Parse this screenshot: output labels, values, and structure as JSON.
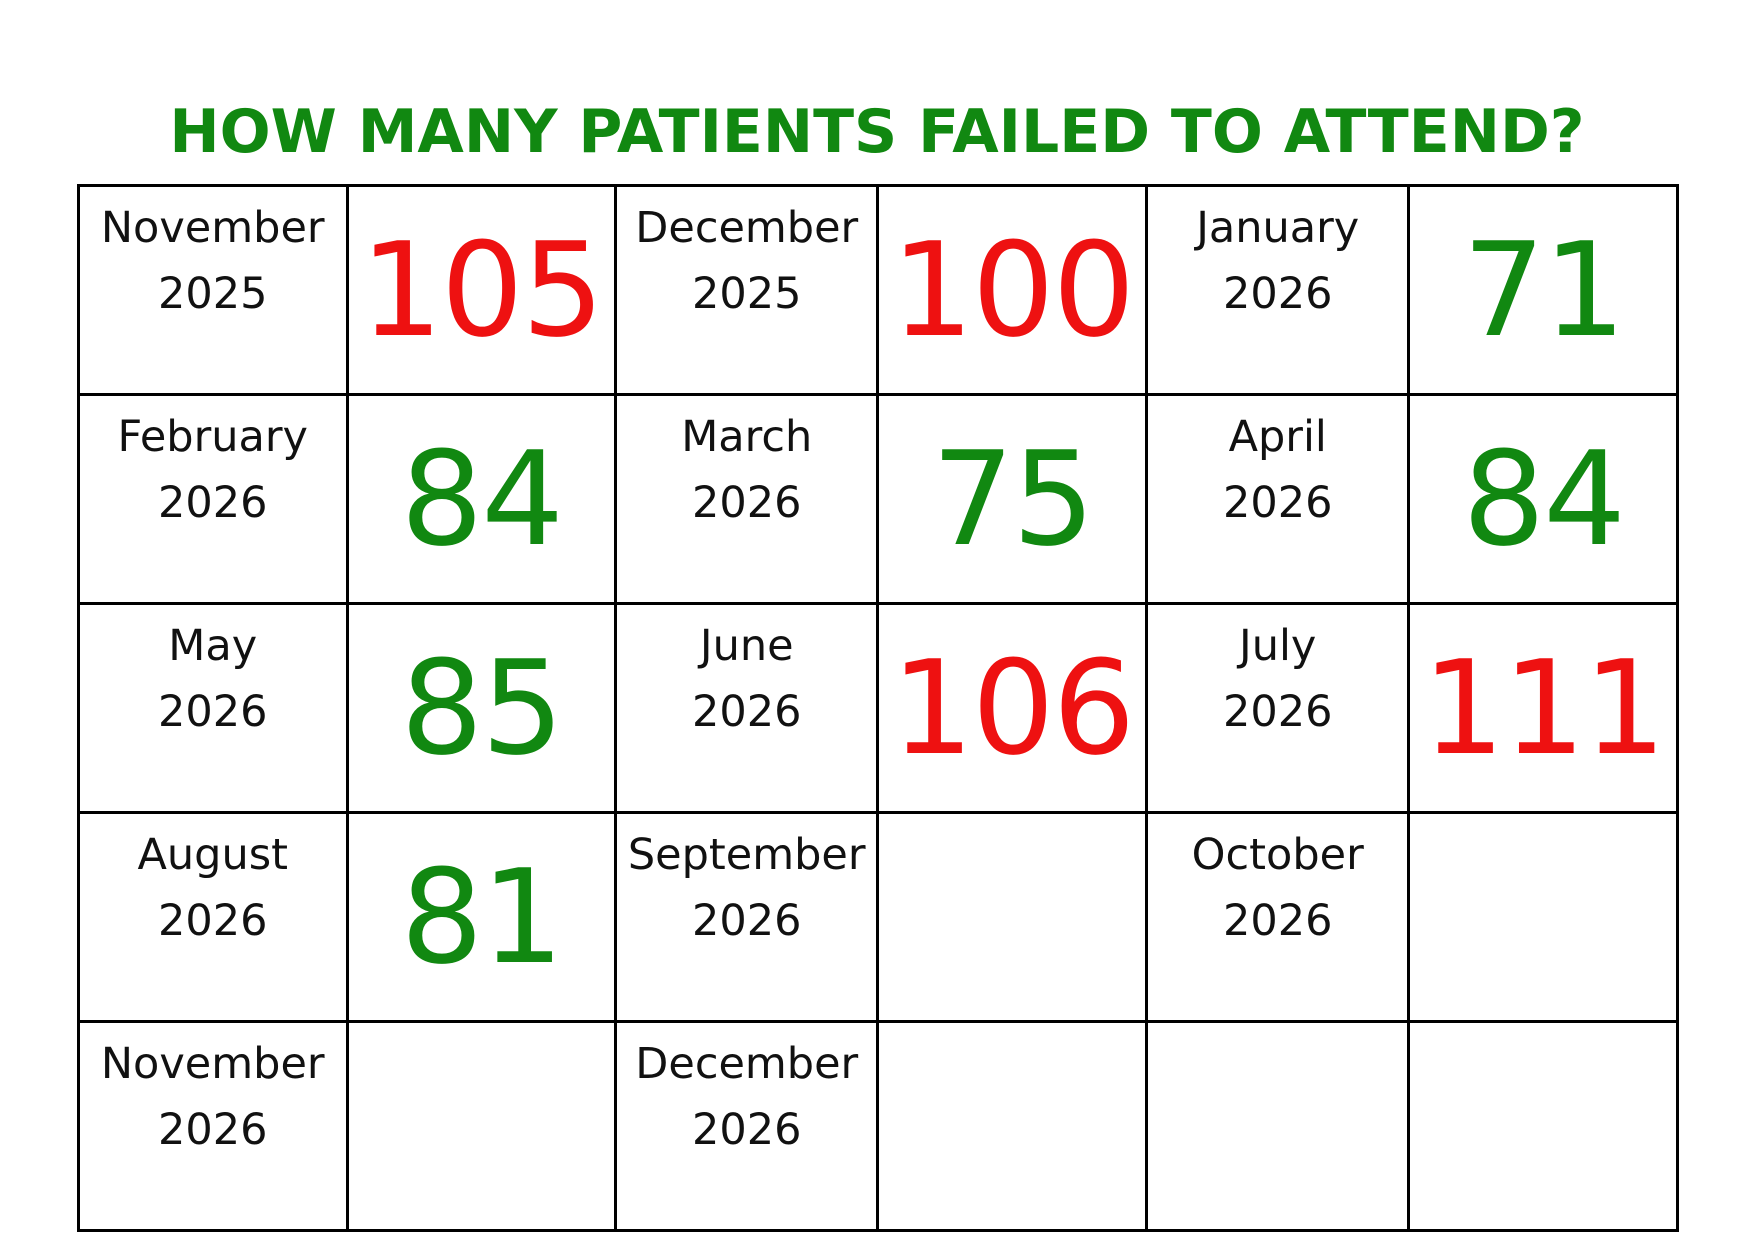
{
  "title": "HOW MANY PATIENTS FAILED TO ATTEND?",
  "colors": {
    "title": "#118811",
    "above_target": "#ee1111",
    "below_target": "#118811",
    "grid_line": "#000000"
  },
  "rows": [
    [
      {
        "month": "November",
        "year": "2025",
        "value": "105",
        "status": "red"
      },
      {
        "month": "December",
        "year": "2025",
        "value": "100",
        "status": "red"
      },
      {
        "month": "January",
        "year": "2026",
        "value": "71",
        "status": "green"
      }
    ],
    [
      {
        "month": "February",
        "year": "2026",
        "value": "84",
        "status": "green"
      },
      {
        "month": "March",
        "year": "2026",
        "value": "75",
        "status": "green"
      },
      {
        "month": "April",
        "year": "2026",
        "value": "84",
        "status": "green"
      }
    ],
    [
      {
        "month": "May",
        "year": "2026",
        "value": "85",
        "status": "green"
      },
      {
        "month": "June",
        "year": "2026",
        "value": "106",
        "status": "red"
      },
      {
        "month": "July",
        "year": "2026",
        "value": "111",
        "status": "red"
      }
    ],
    [
      {
        "month": "August",
        "year": "2026",
        "value": "81",
        "status": "green"
      },
      {
        "month": "September",
        "year": "2026",
        "value": "",
        "status": "none"
      },
      {
        "month": "October",
        "year": "2026",
        "value": "",
        "status": "none"
      }
    ],
    [
      {
        "month": "November",
        "year": "2026",
        "value": "",
        "status": "none"
      },
      {
        "month": "December",
        "year": "2026",
        "value": "",
        "status": "none"
      },
      {
        "month": "",
        "year": "",
        "value": "",
        "status": "none"
      }
    ]
  ]
}
